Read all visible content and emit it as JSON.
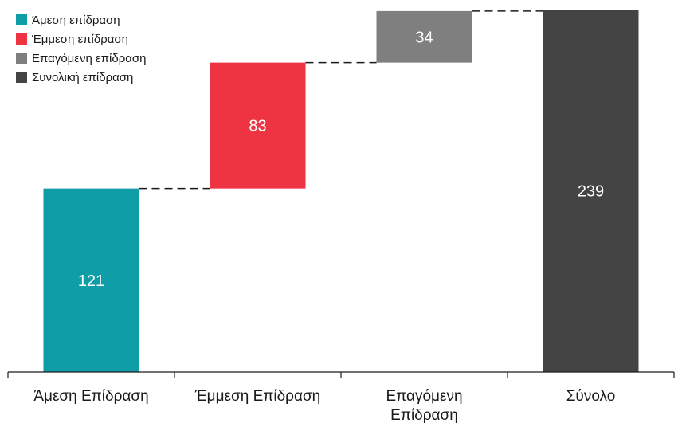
{
  "chart_data": {
    "type": "bar",
    "subtype": "waterfall",
    "categories": [
      "Άμεση Επίδραση",
      "Έμμεση Επίδραση",
      "Επαγόμενη Επίδραση",
      "Σύνολο"
    ],
    "category_lines": [
      [
        "Άμεση Επίδραση"
      ],
      [
        "Έμμεση Επίδραση"
      ],
      [
        "Επαγόμενη",
        "Επίδραση"
      ],
      [
        "Σύνολο"
      ]
    ],
    "values": [
      121,
      83,
      34,
      239
    ],
    "data_labels": [
      "121",
      "83",
      "34",
      "239"
    ],
    "bar_base": [
      0,
      121,
      204,
      0
    ],
    "bar_colors": [
      "#0F9EA8",
      "#EE3443",
      "#7F7F7F",
      "#444444"
    ],
    "connectors": "dashed",
    "legend": {
      "position": "top-left",
      "entries": [
        {
          "label": "Άμεση επίδραση",
          "color": "#0F9EA8"
        },
        {
          "label": "Έμμεση επίδραση",
          "color": "#EE3443"
        },
        {
          "label": "Επαγόμενη επίδραση",
          "color": "#7F7F7F"
        },
        {
          "label": "Συνολική επίδραση",
          "color": "#444444"
        }
      ]
    },
    "title": "",
    "xlabel": "",
    "ylabel": "",
    "ylim": [
      0,
      239
    ],
    "grid": false,
    "y_axis_visible": false
  }
}
